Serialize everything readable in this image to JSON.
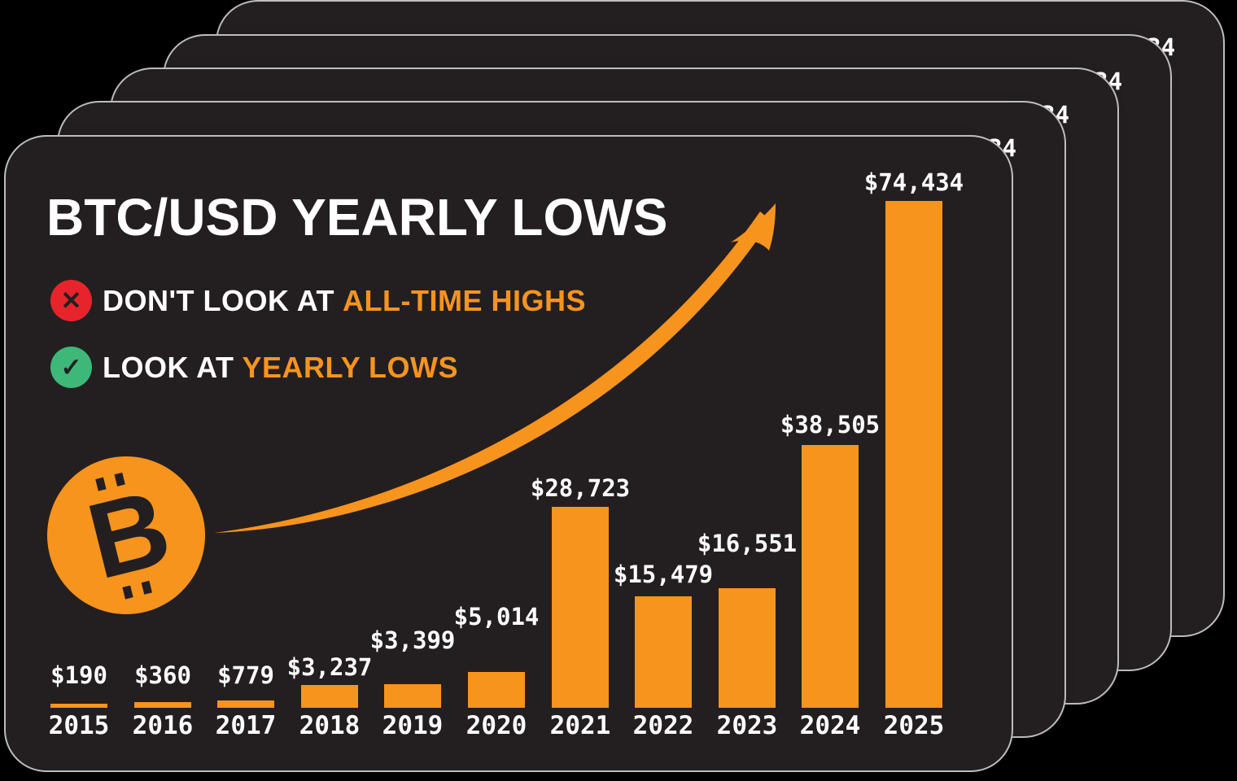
{
  "page": {
    "background": "#000000"
  },
  "card": {
    "title": "BTC/USD YEARLY LOWS",
    "logo_letter": "B",
    "stacked_copies": 5,
    "bullets": [
      {
        "icon": "cross-in-red-circle",
        "icon_glyph": "✕",
        "prefix": "DON'T LOOK AT",
        "highlight": "ALL-TIME HIGHS"
      },
      {
        "icon": "check-in-green-circle",
        "icon_glyph": "✓",
        "prefix": "LOOK AT",
        "highlight": "YEARLY LOWS"
      }
    ],
    "colors": {
      "card_background": "#231F20",
      "accent_orange": "#F7941D",
      "cross_red": "#E7242B",
      "check_green": "#3DB878",
      "text_white": "#FFFFFF",
      "edge_gray": "#BDBDBD"
    }
  },
  "chart_data": {
    "type": "bar",
    "title": "BTC/USD YEARLY LOWS",
    "categories": [
      "2015",
      "2016",
      "2017",
      "2018",
      "2019",
      "2020",
      "2021",
      "2022",
      "2023",
      "2024",
      "2025"
    ],
    "values": [
      190,
      360,
      779,
      3237,
      3399,
      5014,
      28723,
      15479,
      16551,
      38505,
      74434
    ],
    "value_labels": [
      "$190",
      "$360",
      "$779",
      "$3,237",
      "$3,399",
      "$5,014",
      "$28,723",
      "$15,479",
      "$16,551",
      "$38,505",
      "$74,434"
    ],
    "xlabel": "",
    "ylabel": "",
    "ylim": [
      0,
      80000
    ],
    "bar_color": "#F7941D",
    "grid": false,
    "legend": "none",
    "annotations": [
      "curved orange growth arrow from Bitcoin logo up to the 2025 bar"
    ]
  }
}
